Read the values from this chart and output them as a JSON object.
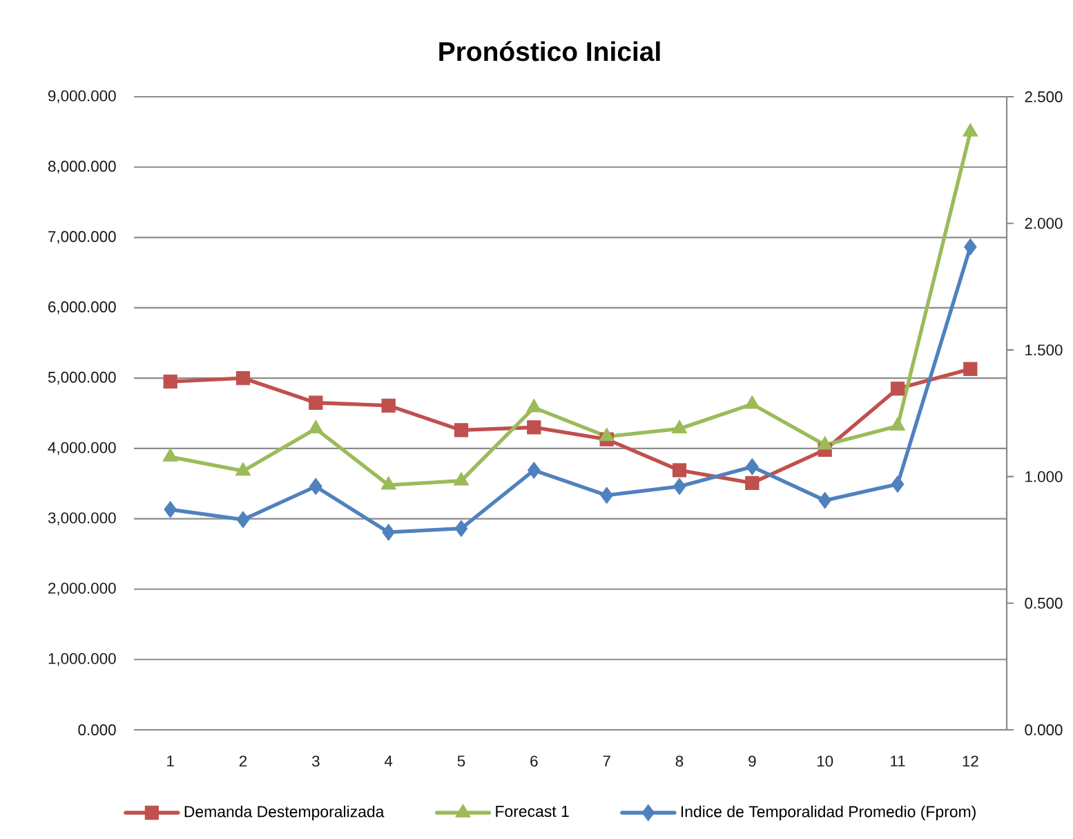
{
  "chart_data": {
    "type": "line",
    "title": "Pronóstico Inicial",
    "categories": [
      "1",
      "2",
      "3",
      "4",
      "5",
      "6",
      "7",
      "8",
      "9",
      "10",
      "11",
      "12"
    ],
    "series": [
      {
        "name": "Demanda Destemporalizada",
        "color": "#c0504d",
        "marker": "square",
        "values": [
          4950,
          5000,
          4650,
          4610,
          4260,
          4300,
          4130,
          3690,
          3510,
          3980,
          4850,
          5130
        ]
      },
      {
        "name": "Forecast 1",
        "color": "#9bbb59",
        "marker": "triangle",
        "values": [
          3880,
          3680,
          4280,
          3480,
          3540,
          4580,
          4170,
          4280,
          4630,
          4050,
          4320,
          8500
        ]
      },
      {
        "name": "Indice de Temporalidad Promedio (Fprom)",
        "color": "#4f81bd",
        "marker": "diamond",
        "axis": "y2",
        "values": [
          0.87,
          0.83,
          0.961,
          0.78,
          0.795,
          1.025,
          0.926,
          0.961,
          1.039,
          0.906,
          0.97,
          1.907
        ]
      }
    ],
    "ylim": [
      0,
      9000
    ],
    "yticks": [
      {
        "value": 0,
        "label": "0.000"
      },
      {
        "value": 1000,
        "label": "1,000.000"
      },
      {
        "value": 2000,
        "label": "2,000.000"
      },
      {
        "value": 3000,
        "label": "3,000.000"
      },
      {
        "value": 4000,
        "label": "4,000.000"
      },
      {
        "value": 5000,
        "label": "5,000.000"
      },
      {
        "value": 6000,
        "label": "6,000.000"
      },
      {
        "value": 7000,
        "label": "7,000.000"
      },
      {
        "value": 8000,
        "label": "8,000.000"
      },
      {
        "value": 9000,
        "label": "9,000.000"
      }
    ],
    "y2lim": [
      0,
      2.5
    ],
    "y2ticks": [
      {
        "value": 0,
        "label": "0.000"
      },
      {
        "value": 0.5,
        "label": "0.500"
      },
      {
        "value": 1,
        "label": "1.000"
      },
      {
        "value": 1.5,
        "label": "1.500"
      },
      {
        "value": 2,
        "label": "2.000"
      },
      {
        "value": 2.5,
        "label": "2.500"
      }
    ],
    "grid": "y",
    "legend": "bottom"
  }
}
